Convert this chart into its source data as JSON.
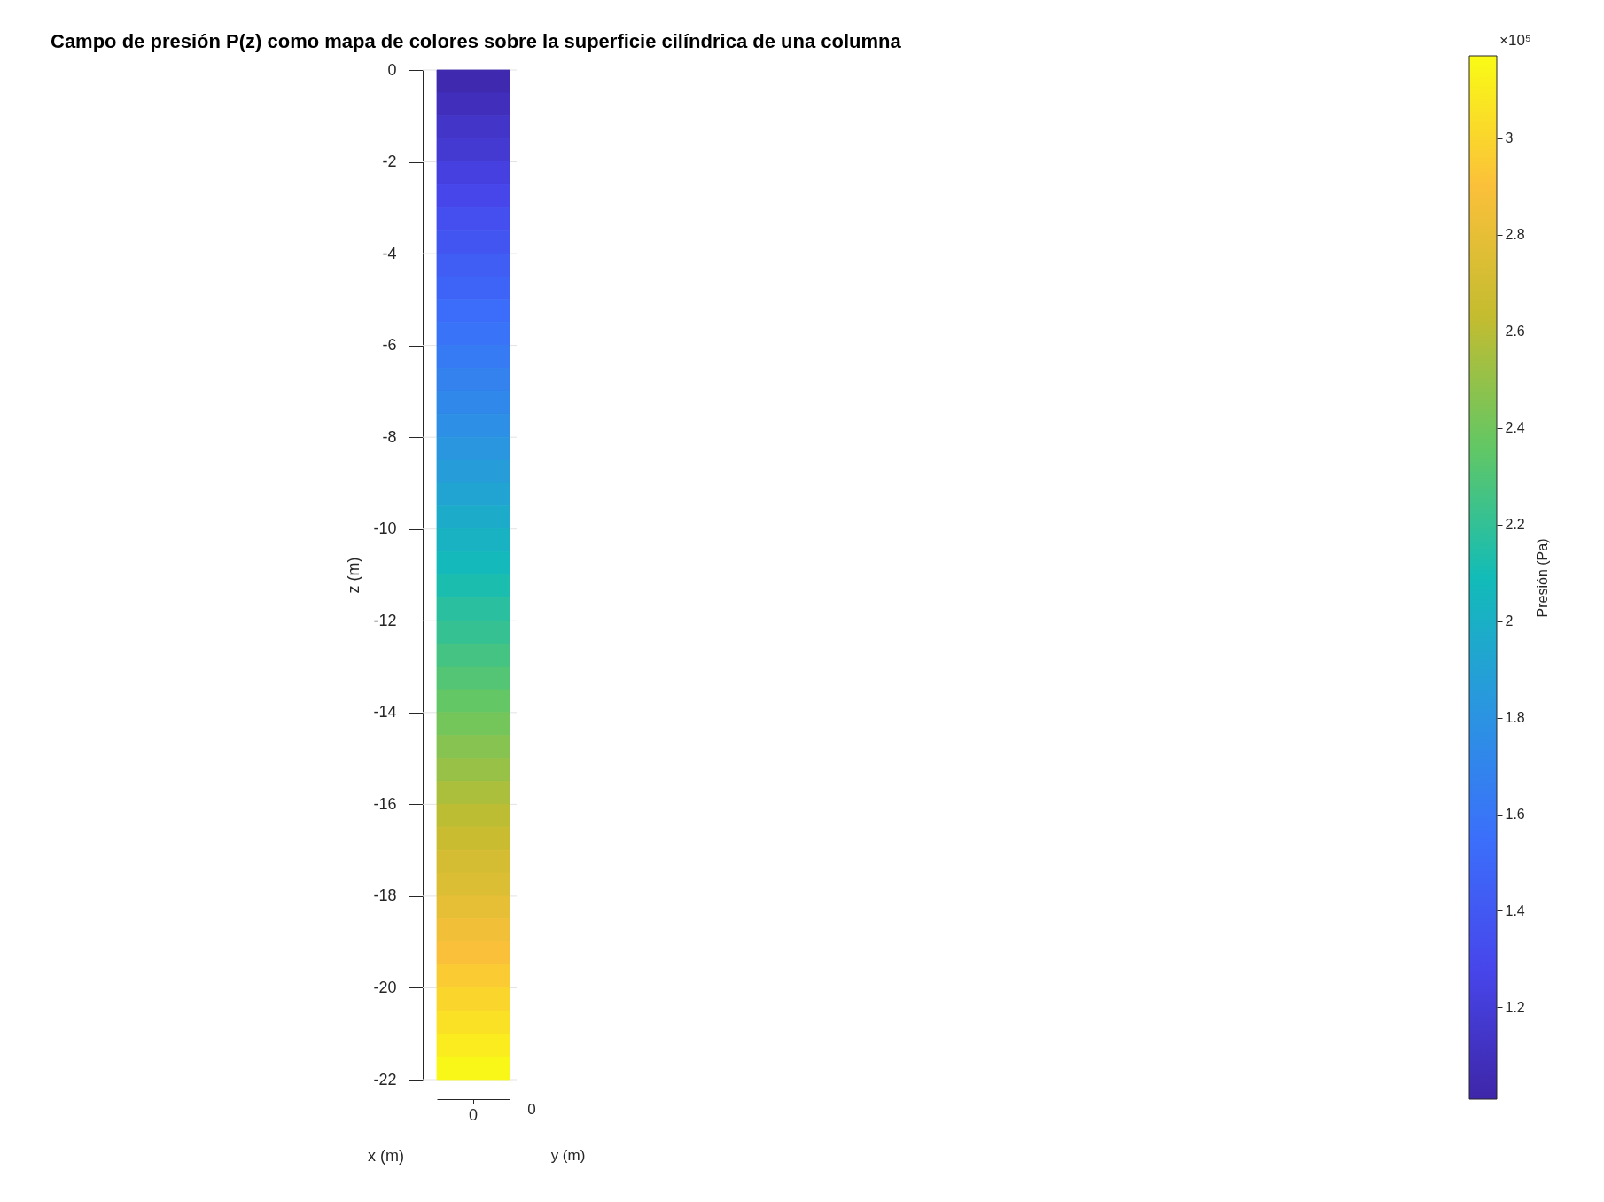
{
  "chart_data": {
    "type": "heatmap",
    "title": "Campo de presión P(z) como mapa de colores sobre la superficie cilíndrica de una columna",
    "xlabel": "x (m)",
    "ylabel": "z (m)",
    "clabel": "Presión (Pa)",
    "categories": [
      "0"
    ],
    "ylim": [
      -22,
      0
    ],
    "yticks": [
      0,
      -2,
      -4,
      -6,
      -8,
      -10,
      -12,
      -14,
      -16,
      -18,
      -20,
      -22
    ],
    "cells": [
      [
        1.04
      ],
      [
        1.09
      ],
      [
        1.14
      ],
      [
        1.18
      ],
      [
        1.23
      ],
      [
        1.28
      ],
      [
        1.33
      ],
      [
        1.38
      ],
      [
        1.43
      ],
      [
        1.48
      ],
      [
        1.53
      ],
      [
        1.58
      ],
      [
        1.63
      ],
      [
        1.68
      ],
      [
        1.72
      ],
      [
        1.77
      ],
      [
        1.82
      ],
      [
        1.87
      ],
      [
        1.92
      ],
      [
        1.97
      ],
      [
        2.02
      ],
      [
        2.07
      ],
      [
        2.12
      ],
      [
        2.17
      ],
      [
        2.21
      ],
      [
        2.26
      ],
      [
        2.31
      ],
      [
        2.36
      ],
      [
        2.41
      ],
      [
        2.46
      ],
      [
        2.51
      ],
      [
        2.56
      ],
      [
        2.61
      ],
      [
        2.66
      ],
      [
        2.71
      ],
      [
        2.75
      ],
      [
        2.8
      ],
      [
        2.85
      ],
      [
        2.9
      ],
      [
        2.95
      ],
      [
        3.0
      ],
      [
        3.05
      ],
      [
        3.1
      ],
      [
        3.15
      ]
    ],
    "clim": [
      1.01,
      3.17
    ],
    "cticks": [
      1.2,
      1.4,
      1.6,
      1.8,
      2,
      2.2,
      2.4,
      2.6,
      2.8,
      3
    ],
    "grid": "y",
    "annotations": [
      "×10⁵",
      "0",
      "y (m)"
    ]
  }
}
